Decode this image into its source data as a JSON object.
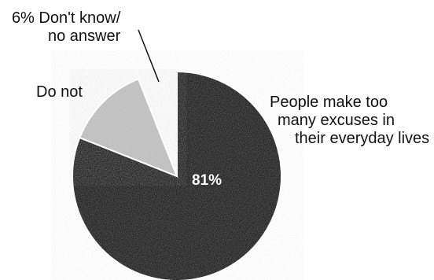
{
  "chart_data": {
    "type": "pie",
    "title": "",
    "slices": [
      {
        "label": "People make too many excuses in their everyday lives",
        "value": 81,
        "color": "#1c1c1c"
      },
      {
        "label": "Do not",
        "value": 13,
        "color": "#bdbdbd"
      },
      {
        "label": "Don't know/ no answer",
        "value": 6,
        "color": "#ffffff"
      }
    ],
    "labels": {
      "dont_know_line1": "6% Don't know/",
      "dont_know_line2": "no answer",
      "do_not": "Do not",
      "make_line1": "People make too",
      "make_line2": "many excuses in",
      "make_line3": "their everyday lives",
      "pct_81": "81%"
    }
  }
}
